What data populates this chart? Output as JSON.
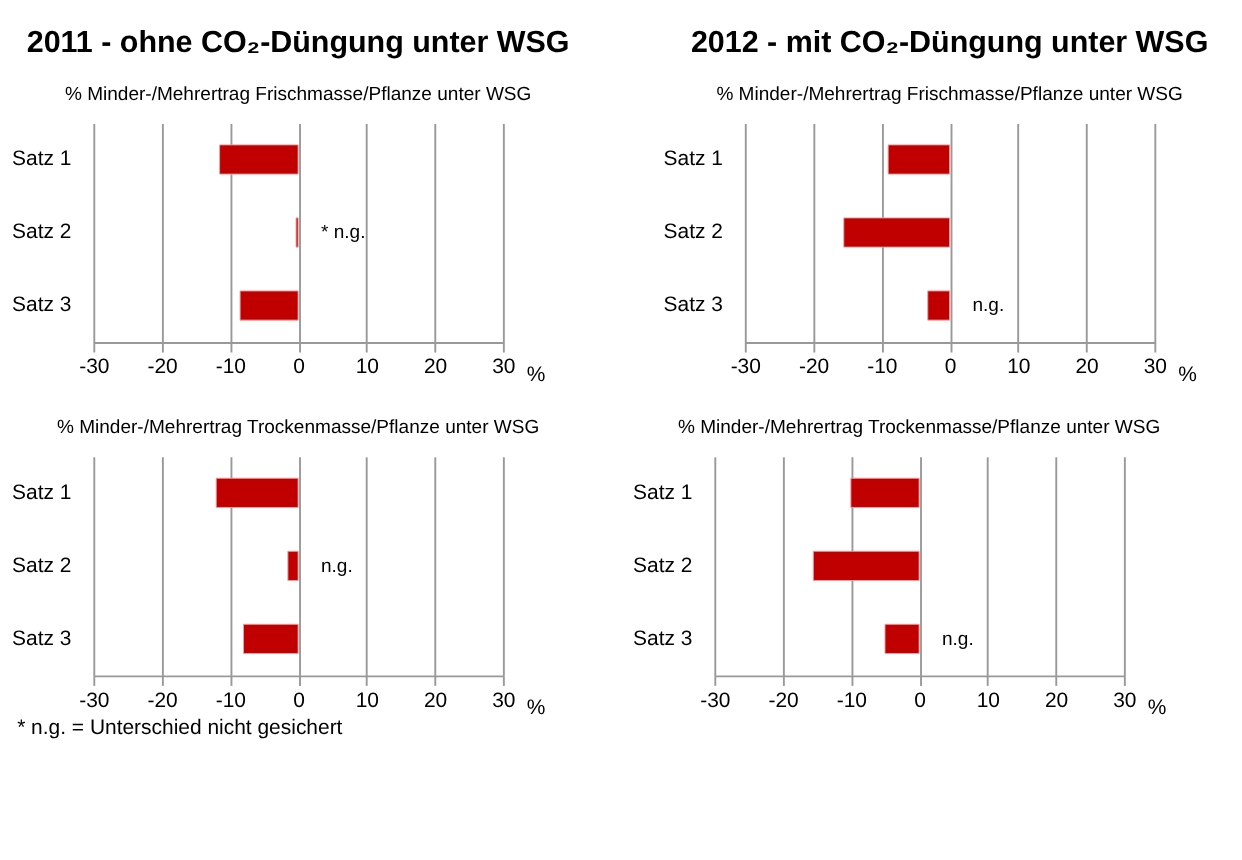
{
  "chart_data": [
    {
      "type": "bar",
      "orientation": "horizontal",
      "title": "2011  - ohne CO₂-Düngung unter WSG",
      "subtitle": "% Minder-/Mehrertrag  Frischmasse/Pflanze unter WSG",
      "categories": [
        "Satz 1",
        "Satz 2",
        "Satz 3"
      ],
      "values": [
        -11.5,
        -0.3,
        -8.5
      ],
      "color": "#c00000",
      "xlim": [
        -30,
        30
      ],
      "xticks": [
        -30,
        -20,
        -10,
        0,
        10,
        20,
        30
      ],
      "xlabel": "%",
      "grid": "x",
      "value_labels": [
        null,
        "* n.g.",
        null
      ]
    },
    {
      "type": "bar",
      "orientation": "horizontal",
      "title": "2012  - mit CO₂-Düngung unter WSG",
      "subtitle": "% Minder-/Mehrertrag  Frischmasse/Pflanze unter WSG",
      "categories": [
        "Satz 1",
        "Satz 2",
        "Satz 3"
      ],
      "values": [
        -9,
        -15.5,
        -3.2
      ],
      "color": "#c00000",
      "xlim": [
        -30,
        30
      ],
      "xticks": [
        -30,
        -20,
        -10,
        0,
        10,
        20,
        30
      ],
      "xlabel": "%",
      "grid": "x",
      "value_labels": [
        null,
        null,
        "n.g."
      ]
    },
    {
      "type": "bar",
      "orientation": "horizontal",
      "subtitle": "% Minder-/Mehrertrag  Trockenmasse/Pflanze unter WSG",
      "categories": [
        "Satz 1",
        "Satz 2",
        "Satz 3"
      ],
      "values": [
        -12,
        -1.5,
        -8
      ],
      "color": "#c00000",
      "xlim": [
        -30,
        30
      ],
      "xticks": [
        -30,
        -20,
        -10,
        0,
        10,
        20,
        30
      ],
      "xlabel": "%",
      "grid": "x",
      "value_labels": [
        null,
        "n.g.",
        null
      ],
      "annotations": [
        "* n.g. = Unterschied nicht gesichert"
      ]
    },
    {
      "type": "bar",
      "orientation": "horizontal",
      "subtitle": "% Minder-/Mehrertrag  Trockenmasse/Pflanze unter WSG",
      "categories": [
        "Satz 1",
        "Satz 2",
        "Satz 3"
      ],
      "values": [
        -10,
        -15.5,
        -5
      ],
      "color": "#c00000",
      "xlim": [
        -30,
        30
      ],
      "xticks": [
        -30,
        -20,
        -10,
        0,
        10,
        20,
        30
      ],
      "xlabel": "%",
      "grid": "x",
      "value_labels": [
        null,
        null,
        "n.g."
      ]
    }
  ]
}
